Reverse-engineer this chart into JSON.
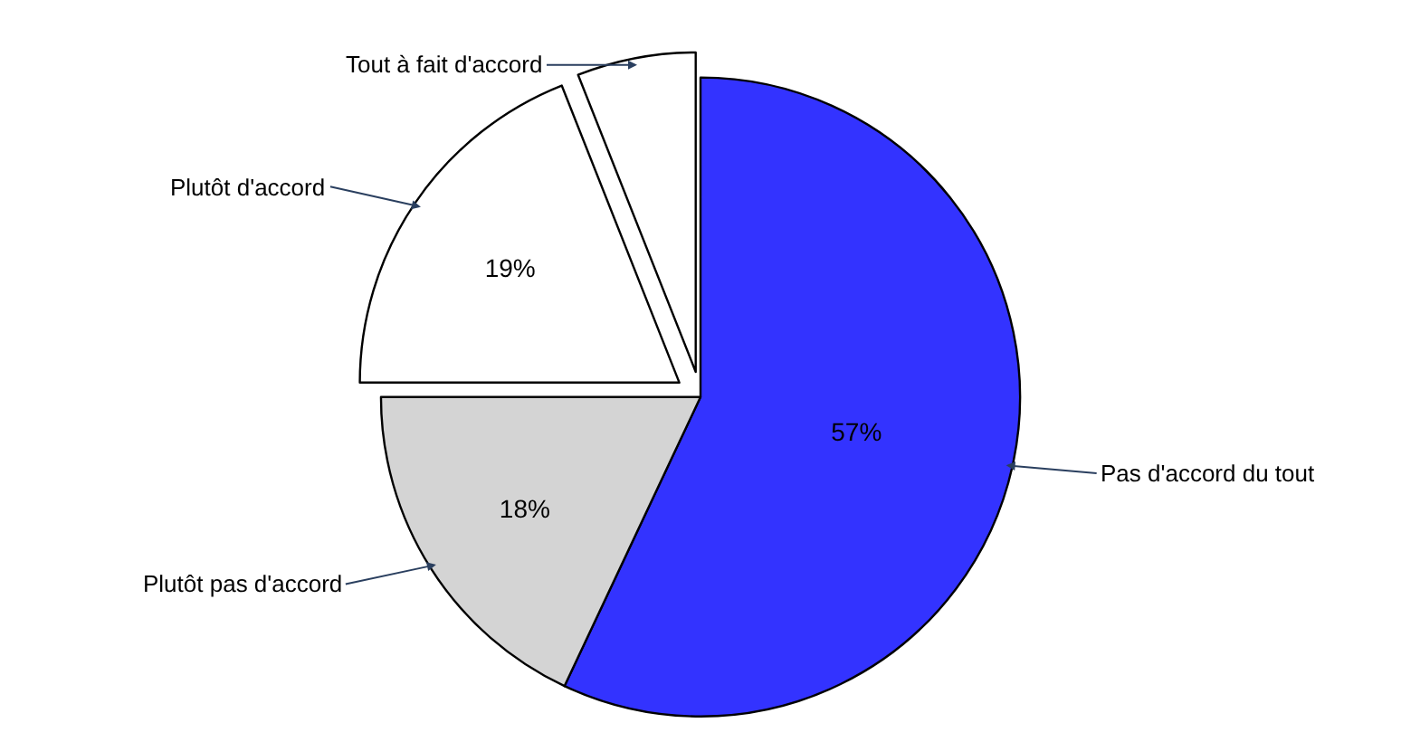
{
  "chart_data": {
    "type": "pie",
    "categories": [
      "Pas d'accord du tout",
      "Plutôt pas d'accord",
      "Plutôt d'accord",
      "Tout à fait d'accord"
    ],
    "values": [
      57,
      18,
      19,
      6
    ],
    "colors": [
      "#3333ff",
      "#d4d4d4",
      "#ffffff",
      "#ffffff"
    ],
    "value_labels": [
      "57%",
      "18%",
      "19%",
      null
    ],
    "legend": false
  }
}
